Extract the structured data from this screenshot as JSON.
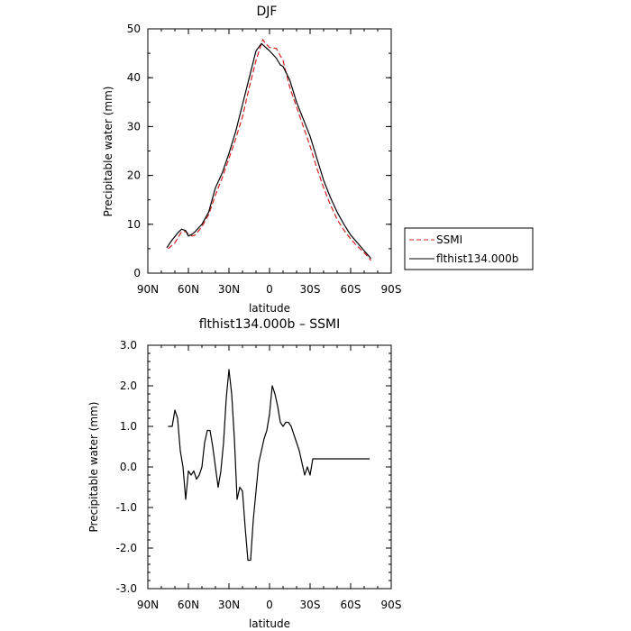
{
  "chart_data": [
    {
      "type": "line",
      "title": "DJF",
      "xlabel": "latitude",
      "ylabel": "Precipitable water  (mm)",
      "xlim": [
        90,
        -90
      ],
      "ylim": [
        0,
        50
      ],
      "xticks": [
        90,
        60,
        30,
        0,
        -30,
        -60,
        -90
      ],
      "xtick_labels": [
        "90N",
        "60N",
        "30N",
        "0",
        "30S",
        "60S",
        "90S"
      ],
      "yticks": [
        0,
        10,
        20,
        30,
        40,
        50
      ],
      "ytick_labels": [
        "0",
        "10",
        "20",
        "30",
        "40",
        "50"
      ],
      "grid": false,
      "legend": "right",
      "series": [
        {
          "name": "SSMI",
          "color": "#d42020",
          "dash": "dashed",
          "x": [
            75,
            70,
            65,
            62,
            60,
            57,
            55,
            50,
            45,
            40,
            35,
            30,
            25,
            20,
            15,
            10,
            5,
            3,
            0,
            -5,
            -10,
            -15,
            -20,
            -25,
            -30,
            -35,
            -40,
            -45,
            -50,
            -55,
            -60,
            -65,
            -70,
            -75
          ],
          "y": [
            5,
            6.2,
            8.5,
            8.5,
            8.0,
            7.6,
            7.8,
            9.5,
            12,
            16,
            19.5,
            23.5,
            27.5,
            32,
            38,
            43.5,
            47.8,
            47.0,
            46.2,
            46.0,
            43.5,
            38,
            34,
            30,
            26,
            21.5,
            17.5,
            14,
            11,
            8.8,
            7.0,
            5.5,
            4.2,
            2.6
          ]
        },
        {
          "name": "flthist134.000b",
          "color": "#000000",
          "dash": "solid",
          "x": [
            76,
            72,
            68,
            65,
            62,
            60,
            57,
            55,
            50,
            45,
            40,
            35,
            30,
            25,
            20,
            15,
            10,
            6,
            4,
            0,
            -5,
            -8,
            -10,
            -15,
            -20,
            -25,
            -30,
            -35,
            -40,
            -45,
            -50,
            -55,
            -60,
            -65,
            -70,
            -75
          ],
          "y": [
            5.2,
            6.8,
            8.2,
            9.0,
            8.7,
            7.6,
            8.0,
            8.5,
            10,
            12.5,
            17.5,
            20.5,
            24.5,
            29,
            34.5,
            40,
            45.5,
            47.0,
            46.5,
            45.5,
            44.0,
            42.6,
            42.3,
            39.5,
            35,
            31.5,
            28,
            23.5,
            19,
            15.5,
            12.5,
            10,
            7.8,
            6.2,
            4.6,
            3.0
          ]
        }
      ]
    },
    {
      "type": "line",
      "title": "flthist134.000b – SSMI",
      "xlabel": "latitude",
      "ylabel": "Precipitable water  (mm)",
      "xlim": [
        90,
        -90
      ],
      "ylim": [
        -3,
        3
      ],
      "xticks": [
        90,
        60,
        30,
        0,
        -30,
        -60,
        -90
      ],
      "xtick_labels": [
        "90N",
        "60N",
        "30N",
        "0",
        "30S",
        "60S",
        "90S"
      ],
      "yticks": [
        3,
        2,
        1,
        0,
        -1,
        -2,
        -3
      ],
      "ytick_labels": [
        "3.0",
        "2.0",
        "1.0",
        "0.0",
        "-1.0",
        "-2.0",
        "-3.0"
      ],
      "grid": false,
      "series": [
        {
          "color": "#000000",
          "x": [
            75,
            72,
            70,
            68,
            66,
            64,
            62,
            60,
            58,
            56,
            54,
            52,
            50,
            48,
            46,
            44,
            42,
            40,
            38,
            36,
            34,
            32,
            30,
            28,
            26,
            24,
            22,
            20,
            18,
            16,
            14,
            12,
            10,
            8,
            6,
            4,
            2,
            0,
            -2,
            -4,
            -6,
            -8,
            -10,
            -12,
            -14,
            -16,
            -18,
            -20,
            -22,
            -24,
            -26,
            -28,
            -30,
            -32,
            -34,
            -36,
            -38,
            -40,
            -42,
            -44,
            -46,
            -48,
            -50,
            -52,
            -54,
            -56,
            -58,
            -60,
            -62,
            -64,
            -66,
            -68,
            -70,
            -72,
            -74
          ],
          "y": [
            1.0,
            1.0,
            1.4,
            1.2,
            0.4,
            0.0,
            -0.8,
            -0.1,
            -0.2,
            -0.1,
            -0.3,
            -0.2,
            0.0,
            0.6,
            0.9,
            0.9,
            0.5,
            0.0,
            -0.5,
            -0.1,
            0.6,
            1.7,
            2.4,
            1.8,
            0.7,
            -0.8,
            -0.5,
            -0.6,
            -1.5,
            -2.3,
            -2.3,
            -1.3,
            -0.6,
            0.1,
            0.4,
            0.7,
            0.9,
            1.3,
            2.0,
            1.8,
            1.5,
            1.1,
            1.0,
            1.1,
            1.1,
            1.0,
            0.8,
            0.6,
            0.4,
            0.1,
            -0.2,
            0.0,
            -0.2,
            0.2,
            0.2,
            0.2,
            0.2,
            0.2,
            0.2,
            0.2,
            0.2,
            0.2,
            0.2,
            0.2,
            0.2,
            0.2,
            0.2,
            0.2,
            0.2,
            0.2,
            0.2,
            0.2,
            0.2,
            0.2,
            0.2
          ]
        }
      ]
    }
  ]
}
